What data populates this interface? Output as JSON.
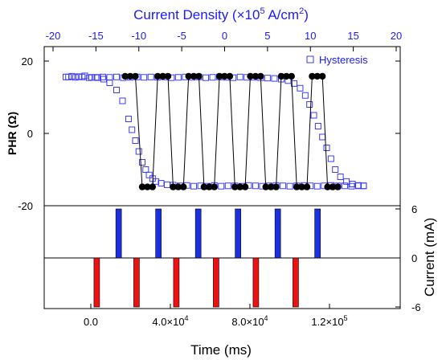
{
  "chart_data": {
    "type": "scatter",
    "colors": {
      "hysteresis": "#3b3bff",
      "pulse_black": "#000000",
      "positive_pulse": "#1a2fe0",
      "negative_pulse": "#ee1111",
      "top_axis": "#1a1aff"
    },
    "top_axis": {
      "label": "Current Density (×10",
      "label_sup": "5",
      "label_mid": " A/cm",
      "label_sup2": "2",
      "label_end": ")",
      "ticks": [
        "-20",
        "-15",
        "-10",
        "-5",
        "0",
        "5",
        "10",
        "15",
        "20"
      ],
      "range": [
        -20,
        20
      ]
    },
    "top_panel": {
      "ylabel": "PHR (Ω)",
      "yticks": [
        "20",
        "0",
        "-20"
      ],
      "ylim": [
        -20,
        20
      ],
      "legend": "Hysteresis",
      "hysteresis": {
        "sweep_down_x": [
          -18.5,
          -17.8,
          -17.0,
          -16.3,
          -15.5,
          -14.8,
          -14.1,
          -13.4,
          -12.6,
          -11.9,
          -11.2,
          -10.8,
          -10.4,
          -10.0,
          -9.6,
          -9.2,
          -8.8,
          -8.4,
          -8.0,
          -7.4,
          -6.7,
          -6.0,
          -5.2,
          -4.4,
          -3.6,
          -2.8,
          -2.0,
          -1.2,
          -0.4,
          0.4,
          1.2,
          2.0,
          2.8,
          3.6,
          4.4,
          5.2,
          6.0,
          6.8,
          7.6,
          8.4,
          9.2,
          10.0,
          10.8,
          11.6,
          12.4,
          13.2,
          14.0,
          14.8,
          15.6,
          16.2
        ],
        "sweep_down_y": [
          15.6,
          15.8,
          15.7,
          15.9,
          15.5,
          15.4,
          15.0,
          14.0,
          12.0,
          9.0,
          4.0,
          1.0,
          -2.0,
          -5.0,
          -8.0,
          -10.0,
          -11.5,
          -12.5,
          -13.3,
          -13.8,
          -14.2,
          -14.3,
          -14.5,
          -14.4,
          -14.6,
          -14.5,
          -14.6,
          -14.4,
          -14.6,
          -14.5,
          -14.5,
          -14.6,
          -14.4,
          -14.5,
          -14.6,
          -14.5,
          -14.4,
          -14.5,
          -14.6,
          -14.5,
          -14.4,
          -14.5,
          -14.6,
          -14.5,
          -14.4,
          -14.5,
          -14.5,
          -14.6,
          -14.5,
          -14.5
        ],
        "sweep_up_x": [
          16.2,
          15.6,
          14.9,
          14.2,
          13.5,
          12.9,
          12.4,
          11.9,
          11.4,
          10.9,
          10.4,
          9.9,
          9.4,
          8.8,
          8.1,
          7.4,
          6.6,
          5.8,
          5.0,
          4.2,
          3.4,
          2.6,
          1.8,
          1.0,
          0.2,
          -0.6,
          -1.4,
          -2.2,
          -3.0,
          -3.8,
          -4.6,
          -5.4,
          -6.2,
          -7.0,
          -7.8,
          -8.6,
          -9.4,
          -10.2,
          -11.0,
          -11.8,
          -12.6,
          -13.4,
          -14.2,
          -15.0,
          -15.8,
          -16.6,
          -17.4,
          -18.2
        ],
        "sweep_up_y": [
          -14.5,
          -14.4,
          -14.0,
          -13.3,
          -12.0,
          -10.0,
          -7.0,
          -4.0,
          -1.0,
          2.0,
          5.0,
          8.0,
          10.5,
          12.5,
          13.8,
          14.6,
          15.0,
          15.2,
          15.3,
          15.4,
          15.5,
          15.5,
          15.6,
          15.4,
          15.5,
          15.6,
          15.5,
          15.4,
          15.6,
          15.5,
          15.6,
          15.5,
          15.4,
          15.6,
          15.5,
          15.6,
          15.5,
          15.6,
          15.5,
          15.4,
          15.6,
          15.5,
          15.6,
          15.5,
          15.4,
          15.6,
          15.5,
          15.6
        ]
      },
      "pulse_response": {
        "x": [
          -11.6,
          -11.0,
          -10.4,
          -9.6,
          -9.0,
          -8.4,
          -7.8,
          -7.2,
          -6.6,
          -6.0,
          -5.4,
          -4.8,
          -4.2,
          -3.6,
          -3.0,
          -2.4,
          -1.8,
          -1.2,
          -0.6,
          0.0,
          0.6,
          1.2,
          1.8,
          2.4,
          3.0,
          3.6,
          4.2,
          4.8,
          5.4,
          6.0,
          6.6,
          7.2,
          7.8,
          8.4,
          9.0,
          9.6,
          10.2,
          10.8,
          11.4,
          12.0,
          12.6,
          13.2
        ],
        "y": [
          15.8,
          15.8,
          15.8,
          -14.8,
          -14.8,
          -14.8,
          15.8,
          15.8,
          15.8,
          -14.8,
          -14.8,
          -14.8,
          15.8,
          15.8,
          15.8,
          -14.8,
          -14.8,
          -14.8,
          15.8,
          15.8,
          15.8,
          -14.8,
          -14.8,
          -14.8,
          15.8,
          15.8,
          15.8,
          -14.8,
          -14.8,
          -14.8,
          15.8,
          15.8,
          15.8,
          -14.8,
          -14.8,
          -14.8,
          15.8,
          15.8,
          15.8,
          -14.8,
          -14.8,
          -14.8
        ]
      }
    },
    "bottom_panel": {
      "ylabel": "Current (mA)",
      "yticks": [
        "6",
        "0",
        "-6"
      ],
      "ylim": [
        -6,
        6
      ],
      "xlabel": "Time (ms)",
      "xticks": [
        {
          "mantissa": "0.0",
          "exp": ""
        },
        {
          "mantissa": "4.0×10",
          "exp": "4"
        },
        {
          "mantissa": "8.0×10",
          "exp": "4"
        },
        {
          "mantissa": "1.2×10",
          "exp": "5"
        }
      ],
      "xtick_values": [
        0,
        40000,
        80000,
        120000
      ],
      "xlim": [
        -20000,
        140000
      ],
      "positive_pulses_time": [
        14000,
        34000,
        54000,
        74000,
        94000,
        114000
      ],
      "positive_pulse_amp": 6,
      "negative_pulses_time": [
        3000,
        23000,
        43000,
        63000,
        83000,
        103000
      ],
      "negative_pulse_amp": -6
    }
  }
}
